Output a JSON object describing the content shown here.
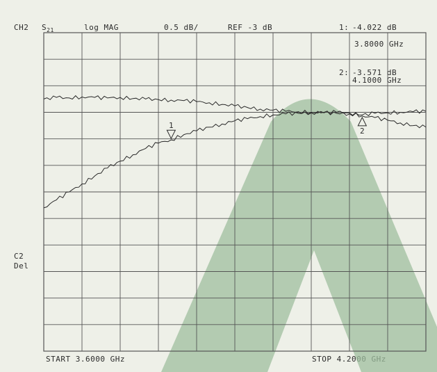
{
  "header": {
    "channel": "CH2",
    "param_main": "S",
    "param_sub": "21",
    "format": "log MAG",
    "scale": "0.5 dB/",
    "ref": "REF -3 dB"
  },
  "markers": [
    {
      "id": "1",
      "label": "1:",
      "value": "-4.022 dB",
      "freq": "3.8000 GHz"
    },
    {
      "id": "2",
      "label": "2:",
      "value": "-3.571 dB",
      "freq": "4.1000 GHz"
    }
  ],
  "side_label": {
    "line1": "C2",
    "line2": "Del"
  },
  "footer": {
    "start": "START  3.6000 GHz",
    "stop": "STOP  4.2000 GHz"
  },
  "colors": {
    "background": "#eef0e8",
    "grid": "#555555",
    "trace": "#2a2a2a",
    "watermark": "#9fbf9f"
  },
  "chart_data": {
    "type": "line",
    "title": "",
    "xlabel": "",
    "ylabel": "",
    "xlim": [
      3.6,
      4.2
    ],
    "ylim": [
      -8,
      -2
    ],
    "x_unit": "GHz",
    "y_unit": "dB",
    "grid": true,
    "series": [
      {
        "x": [
          3.6,
          3.62,
          3.64,
          3.66,
          3.68,
          3.7,
          3.72,
          3.74,
          3.76,
          3.78,
          3.8,
          3.82,
          3.84,
          3.86,
          3.88,
          3.9,
          3.92,
          3.94,
          3.96,
          3.98,
          4.0,
          4.02,
          4.04,
          4.06,
          4.08,
          4.1,
          4.12,
          4.14,
          4.16,
          4.18,
          4.2
        ],
        "y": [
          -3.25,
          -3.22,
          -3.23,
          -3.21,
          -3.22,
          -3.23,
          -3.22,
          -3.24,
          -3.25,
          -3.26,
          -3.27,
          -3.28,
          -3.3,
          -3.32,
          -3.35,
          -3.38,
          -3.41,
          -3.44,
          -3.46,
          -3.48,
          -3.49,
          -3.5,
          -3.51,
          -3.52,
          -3.53,
          -3.55,
          -3.52,
          -3.51,
          -3.5,
          -3.49,
          -3.48
        ]
      },
      {
        "x": [
          3.6,
          3.62,
          3.64,
          3.66,
          3.68,
          3.7,
          3.72,
          3.74,
          3.76,
          3.78,
          3.8,
          3.82,
          3.84,
          3.86,
          3.88,
          3.9,
          3.92,
          3.94,
          3.96,
          3.98,
          4.0,
          4.02,
          4.04,
          4.06,
          4.08,
          4.1,
          4.12,
          4.14,
          4.16,
          4.18,
          4.2
        ],
        "y": [
          -5.3,
          -5.15,
          -5.0,
          -4.85,
          -4.7,
          -4.55,
          -4.42,
          -4.3,
          -4.18,
          -4.08,
          -4.02,
          -3.92,
          -3.85,
          -3.78,
          -3.72,
          -3.66,
          -3.62,
          -3.58,
          -3.55,
          -3.53,
          -3.52,
          -3.51,
          -3.5,
          -3.5,
          -3.51,
          -3.57,
          -3.6,
          -3.65,
          -3.7,
          -3.75,
          -3.78
        ]
      }
    ]
  }
}
